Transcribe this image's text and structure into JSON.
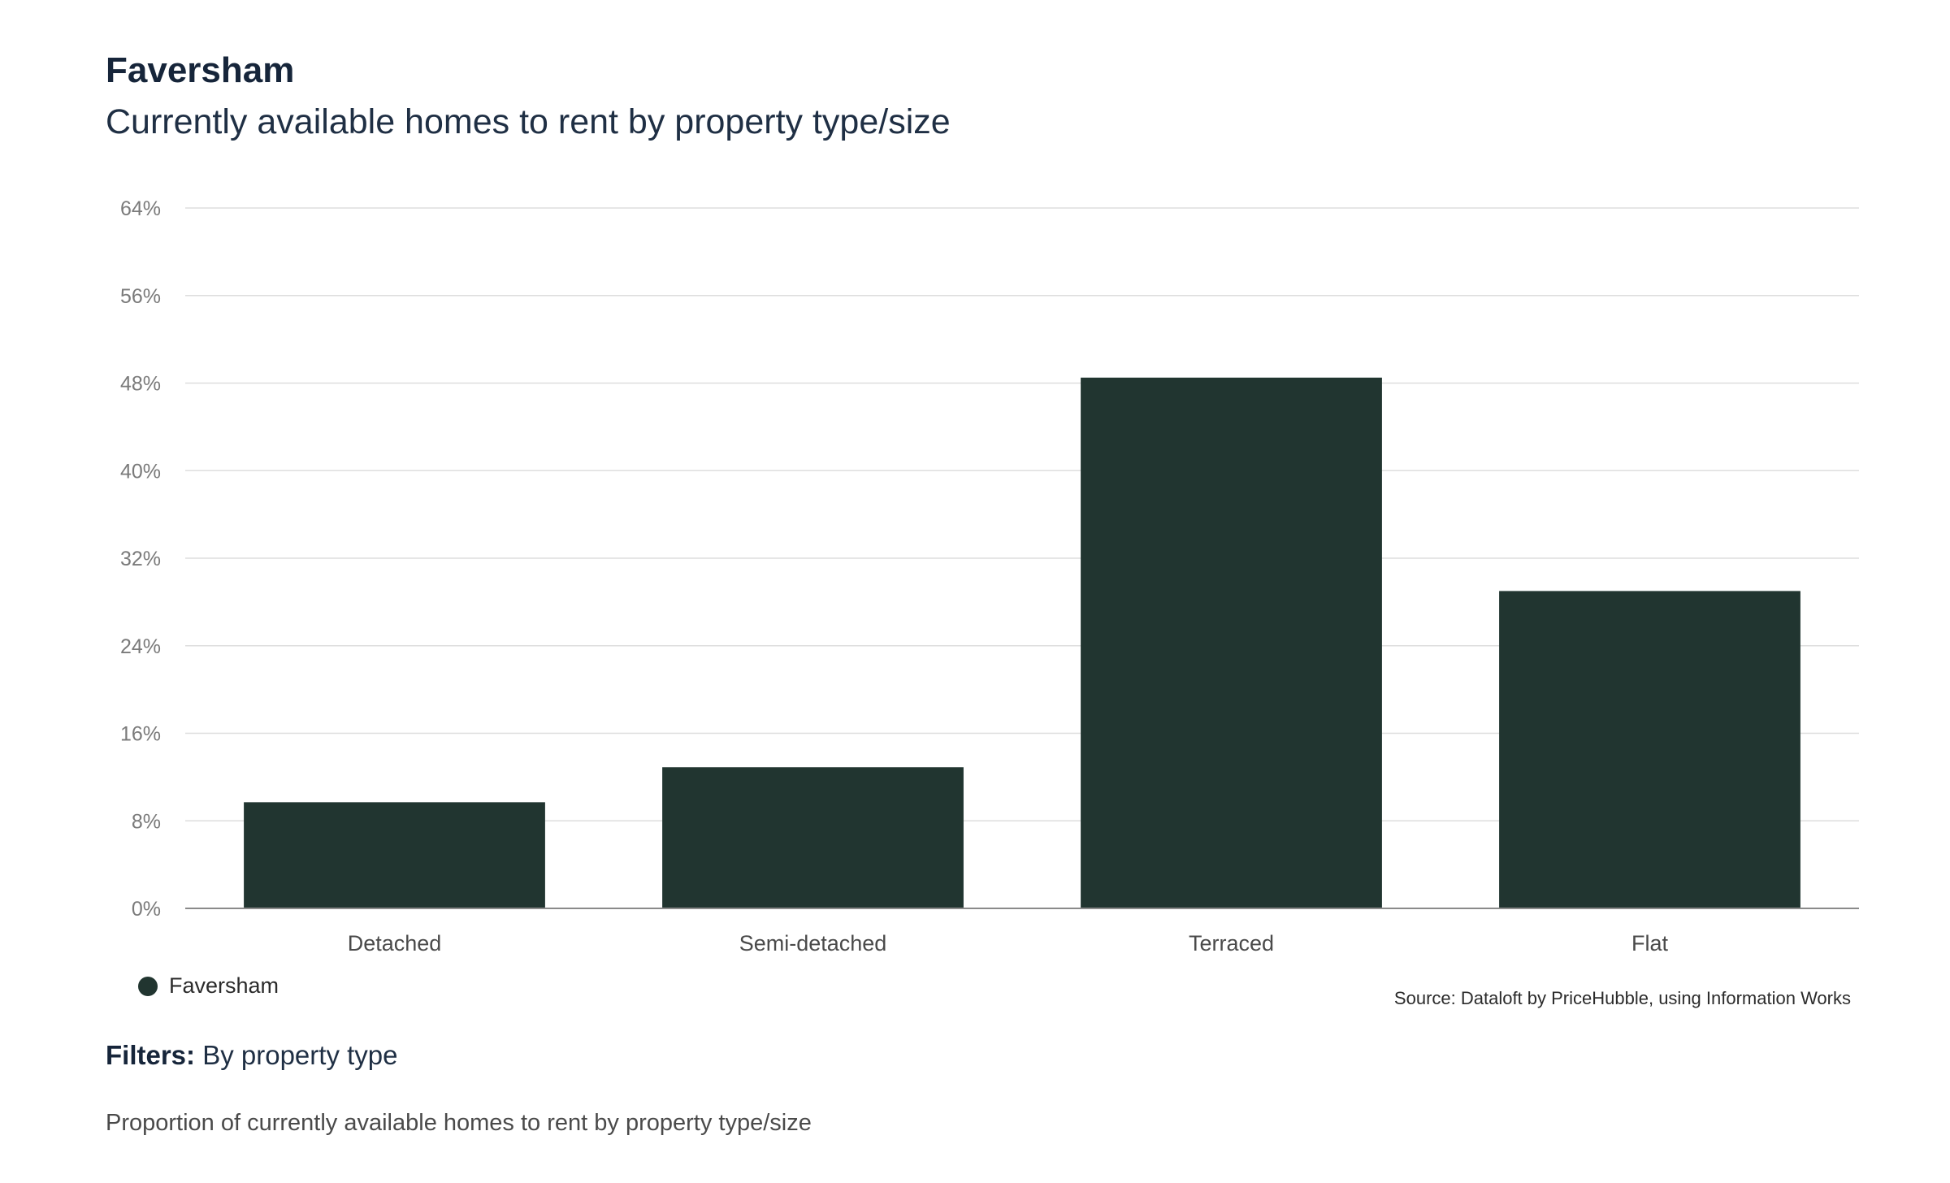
{
  "header": {
    "title": "Faversham",
    "subtitle": "Currently available homes to rent by property type/size"
  },
  "legend": {
    "label": "Faversham",
    "color": "#213530"
  },
  "source": "Source: Dataloft by PriceHubble, using Information Works",
  "filters": {
    "key": "Filters:",
    "value": "By property type"
  },
  "description": "Proportion of currently available homes to rent by property type/size",
  "chart_data": {
    "type": "bar",
    "title": "Currently available homes to rent by property type/size",
    "xlabel": "",
    "ylabel": "",
    "categories": [
      "Detached",
      "Semi-detached",
      "Terraced",
      "Flat"
    ],
    "series": [
      {
        "name": "Faversham",
        "values": [
          9.7,
          12.9,
          48.5,
          29.0
        ],
        "color": "#213530"
      }
    ],
    "ylim": [
      0,
      64
    ],
    "yticks": [
      0,
      8,
      16,
      24,
      32,
      40,
      48,
      56,
      64
    ],
    "ytick_labels": [
      "0%",
      "8%",
      "16%",
      "24%",
      "32%",
      "40%",
      "48%",
      "56%",
      "64%"
    ],
    "grid": true,
    "legend_position": "bottom-left"
  }
}
